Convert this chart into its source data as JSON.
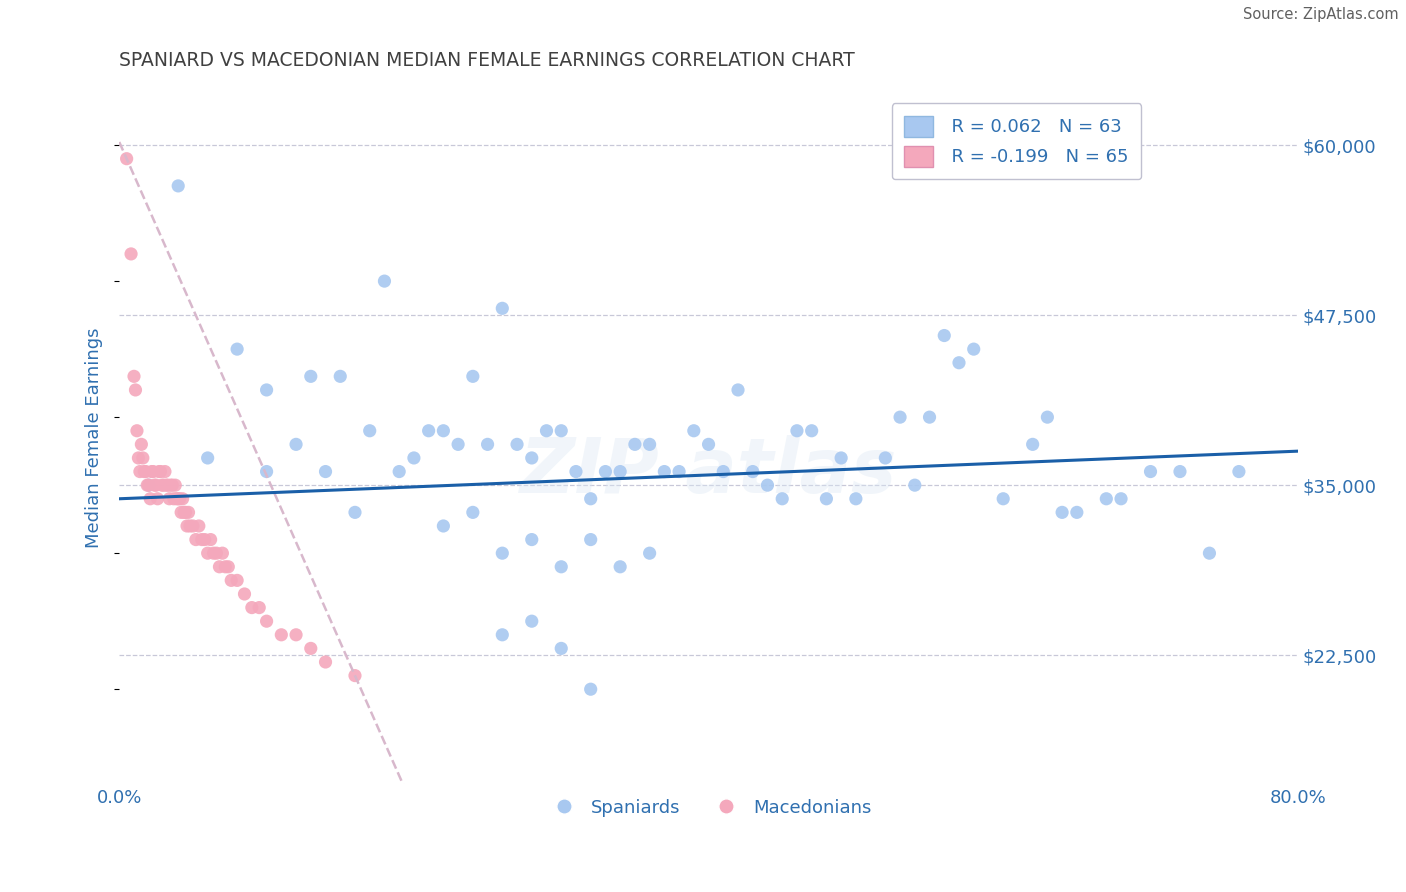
{
  "title": "SPANIARD VS MACEDONIAN MEDIAN FEMALE EARNINGS CORRELATION CHART",
  "source": "Source: ZipAtlas.com",
  "ylabel": "Median Female Earnings",
  "xlim": [
    0.0,
    0.8
  ],
  "ylim": [
    13000,
    64000
  ],
  "yticks": [
    22500,
    35000,
    47500,
    60000
  ],
  "ytick_labels": [
    "$22,500",
    "$35,000",
    "$47,500",
    "$60,000"
  ],
  "spaniard_color": "#a8c8f0",
  "macedonian_color": "#f4a8bc",
  "trend_spaniard_color": "#1a5fa8",
  "trend_macedonian_color": "#d8b8cc",
  "R_spaniard": 0.062,
  "N_spaniard": 63,
  "R_macedonian": -0.199,
  "N_macedonian": 65,
  "background_color": "#ffffff",
  "grid_color": "#c8c8d8",
  "spaniard_x": [
    0.02,
    0.04,
    0.06,
    0.08,
    0.1,
    0.1,
    0.12,
    0.13,
    0.14,
    0.15,
    0.16,
    0.17,
    0.18,
    0.19,
    0.2,
    0.21,
    0.22,
    0.23,
    0.24,
    0.25,
    0.26,
    0.27,
    0.28,
    0.29,
    0.3,
    0.31,
    0.32,
    0.33,
    0.34,
    0.35,
    0.36,
    0.37,
    0.38,
    0.39,
    0.4,
    0.41,
    0.42,
    0.43,
    0.44,
    0.45,
    0.46,
    0.47,
    0.48,
    0.49,
    0.5,
    0.52,
    0.53,
    0.54,
    0.55,
    0.56,
    0.57,
    0.58,
    0.6,
    0.62,
    0.63,
    0.64,
    0.65,
    0.67,
    0.68,
    0.7,
    0.72,
    0.74,
    0.76
  ],
  "spaniard_y": [
    35000,
    57000,
    37000,
    45000,
    42000,
    36000,
    38000,
    43000,
    36000,
    43000,
    33000,
    39000,
    50000,
    36000,
    37000,
    39000,
    39000,
    38000,
    43000,
    38000,
    48000,
    38000,
    37000,
    39000,
    39000,
    36000,
    34000,
    36000,
    36000,
    38000,
    38000,
    36000,
    36000,
    39000,
    38000,
    36000,
    42000,
    36000,
    35000,
    34000,
    39000,
    39000,
    34000,
    37000,
    34000,
    37000,
    40000,
    35000,
    40000,
    46000,
    44000,
    45000,
    34000,
    38000,
    40000,
    33000,
    33000,
    34000,
    34000,
    36000,
    36000,
    30000,
    36000
  ],
  "macedonian_x": [
    0.005,
    0.008,
    0.01,
    0.011,
    0.012,
    0.013,
    0.014,
    0.015,
    0.016,
    0.017,
    0.018,
    0.019,
    0.02,
    0.021,
    0.022,
    0.023,
    0.024,
    0.025,
    0.026,
    0.027,
    0.028,
    0.029,
    0.03,
    0.031,
    0.032,
    0.033,
    0.034,
    0.035,
    0.036,
    0.037,
    0.038,
    0.039,
    0.04,
    0.041,
    0.042,
    0.043,
    0.044,
    0.045,
    0.046,
    0.047,
    0.048,
    0.05,
    0.052,
    0.054,
    0.056,
    0.058,
    0.06,
    0.062,
    0.064,
    0.066,
    0.068,
    0.07,
    0.072,
    0.074,
    0.076,
    0.08,
    0.085,
    0.09,
    0.095,
    0.1,
    0.11,
    0.12,
    0.13,
    0.14,
    0.16
  ],
  "macedonian_y": [
    59000,
    52000,
    43000,
    42000,
    39000,
    37000,
    36000,
    38000,
    37000,
    36000,
    36000,
    35000,
    35000,
    34000,
    36000,
    36000,
    35000,
    35000,
    34000,
    36000,
    36000,
    35000,
    35000,
    36000,
    35000,
    35000,
    34000,
    35000,
    35000,
    34000,
    35000,
    34000,
    34000,
    34000,
    33000,
    34000,
    33000,
    33000,
    32000,
    33000,
    32000,
    32000,
    31000,
    32000,
    31000,
    31000,
    30000,
    31000,
    30000,
    30000,
    29000,
    30000,
    29000,
    29000,
    28000,
    28000,
    27000,
    26000,
    26000,
    25000,
    24000,
    24000,
    23000,
    22000,
    21000
  ],
  "spaniard_low_x": [
    0.22,
    0.24,
    0.26,
    0.28,
    0.3,
    0.32,
    0.34,
    0.36,
    0.26,
    0.3,
    0.28,
    0.32
  ],
  "spaniard_low_y": [
    32000,
    33000,
    30000,
    31000,
    29000,
    31000,
    29000,
    30000,
    24000,
    23000,
    25000,
    20000
  ]
}
